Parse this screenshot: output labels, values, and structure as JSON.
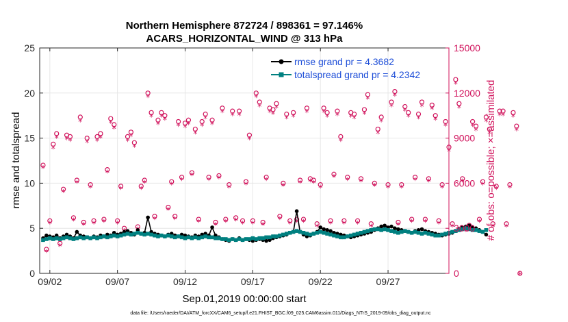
{
  "chart_data": {
    "type": "line",
    "title_line1": "Northern Hemisphere 872724 / 898361 = 97.146%",
    "title_line2": "ACARS_HORIZONTAL_WIND @ 313 hPa",
    "xlabel": "Sep.01,2019 00:00:00 start",
    "ylabel_left": "rmse and totalspread",
    "ylabel_right": "# of obs: o=possible; ×=assimilated",
    "footnote": "data file: /Users/raeder/DAI/ATM_forcXX/CAM6_setup/f.e21.FHIST_BGC.f09_025.CAM6assim.011/Diags_NTrS_2019-09/obs_diag_output.nc",
    "xlim": [
      0.25,
      30.5
    ],
    "ylim_left": [
      0,
      25
    ],
    "ylim_right": [
      0,
      15000
    ],
    "x_ticks": [
      1,
      6,
      11,
      16,
      21,
      26
    ],
    "x_tick_labels": [
      "09/02",
      "09/07",
      "09/12",
      "09/17",
      "09/22",
      "09/27"
    ],
    "y_ticks_left": [
      0,
      5,
      10,
      15,
      20,
      25
    ],
    "y_tick_labels_left": [
      "0",
      "5",
      "10",
      "15",
      "20",
      "25"
    ],
    "y_ticks_right": [
      0,
      3000,
      6000,
      9000,
      12000,
      15000
    ],
    "y_tick_labels_right": [
      "0",
      "3000",
      "6000",
      "9000",
      "12000",
      "15000"
    ],
    "colors": {
      "rmse": "#000000",
      "totalspread": "#008080",
      "obs": "#d0105a",
      "legend_text": "#1f4fd8",
      "grid": "#e6e6e6"
    },
    "series": [
      {
        "name": "rmse",
        "legend_label": "rmse grand pr = 4.3682",
        "values": [
          3.9,
          4.2,
          4.1,
          4.0,
          4.2,
          3.9,
          4.1,
          4.3,
          4.1,
          3.9,
          4.6,
          4.2,
          4.1,
          4.0,
          3.9,
          4.1,
          4.0,
          4.2,
          4.1,
          4.3,
          4.2,
          4.5,
          4.3,
          4.4,
          4.6,
          4.7,
          4.5,
          4.3,
          4.8,
          4.4,
          4.5,
          6.2,
          4.6,
          4.4,
          4.3,
          4.2,
          4.1,
          4.3,
          4.4,
          4.2,
          4.1,
          4.3,
          4.2,
          4.1,
          4.0,
          4.2,
          4.1,
          4.3,
          4.4,
          4.2,
          5.1,
          4.2,
          4.0,
          3.8,
          3.7,
          3.6,
          3.8,
          3.7,
          3.9,
          3.7,
          3.8,
          3.7,
          3.6,
          3.7,
          3.8,
          3.7,
          3.6,
          3.7,
          3.9,
          4.0,
          4.1,
          4.2,
          4.3,
          4.5,
          4.6,
          6.9,
          4.6,
          4.3,
          4.1,
          4.2,
          4.4,
          4.6,
          5.1,
          4.9,
          4.8,
          4.7,
          4.5,
          4.4,
          4.3,
          4.2,
          4.1,
          4.0,
          4.1,
          4.2,
          4.3,
          4.4,
          4.5,
          4.6,
          4.8,
          5.0,
          5.2,
          5.3,
          5.1,
          5.2,
          5.0,
          4.9,
          4.8,
          4.7,
          4.6,
          4.5,
          4.7,
          4.8,
          4.9,
          4.7,
          4.6,
          4.5,
          4.4,
          4.3,
          4.2,
          4.3,
          4.4,
          4.5,
          4.7,
          4.9,
          5.1,
          5.2,
          5.3,
          5.1,
          5.0,
          4.8,
          4.6,
          4.3
        ]
      },
      {
        "name": "totalspread",
        "legend_label": "totalspread grand pr = 4.2342",
        "values": [
          3.7,
          3.8,
          3.9,
          3.8,
          3.9,
          3.8,
          3.9,
          4.0,
          3.9,
          3.8,
          3.9,
          4.0,
          3.9,
          4.0,
          3.9,
          4.0,
          3.9,
          4.0,
          4.1,
          4.0,
          4.1,
          4.2,
          4.1,
          4.2,
          4.3,
          4.4,
          4.3,
          4.4,
          4.5,
          4.4,
          4.3,
          4.4,
          4.3,
          4.2,
          4.1,
          4.2,
          4.1,
          4.2,
          4.1,
          4.0,
          4.1,
          4.0,
          3.9,
          4.0,
          3.9,
          4.0,
          3.9,
          4.0,
          4.1,
          4.0,
          4.0,
          3.9,
          3.9,
          3.8,
          3.8,
          3.7,
          3.8,
          3.7,
          3.8,
          3.7,
          3.8,
          3.8,
          3.9,
          3.8,
          3.9,
          3.9,
          4.0,
          4.0,
          4.1,
          4.1,
          4.2,
          4.3,
          4.4,
          4.5,
          4.6,
          4.7,
          4.6,
          4.5,
          4.4,
          4.3,
          4.4,
          4.5,
          4.6,
          4.5,
          4.4,
          4.3,
          4.2,
          4.1,
          4.0,
          4.0,
          4.1,
          4.2,
          4.3,
          4.4,
          4.5,
          4.6,
          4.7,
          4.8,
          4.9,
          4.9,
          4.8,
          4.9,
          4.8,
          4.7,
          4.6,
          4.5,
          4.6,
          4.7,
          4.6,
          4.5,
          4.6,
          4.5,
          4.4,
          4.5,
          4.4,
          4.3,
          4.2,
          4.2,
          4.3,
          4.4,
          4.5,
          4.6,
          4.7,
          4.8,
          4.9,
          5.0,
          4.9,
          4.8,
          4.8,
          4.7,
          4.6,
          4.8
        ]
      },
      {
        "name": "obs_possible",
        "values": [
          7200,
          1600,
          3500,
          8600,
          9300,
          2000,
          5600,
          9200,
          9100,
          3700,
          6200,
          10400,
          3400,
          9000,
          5900,
          3500,
          9100,
          9300,
          3600,
          6900,
          10300,
          9900,
          3500,
          5800,
          3000,
          9100,
          9400,
          8700,
          3100,
          5800,
          6200,
          12000,
          10700,
          3800,
          10200,
          10700,
          10500,
          4400,
          6100,
          3800,
          10100,
          6400,
          10000,
          10200,
          6700,
          9600,
          3600,
          10100,
          10600,
          6400,
          10200,
          3400,
          6500,
          11000,
          3600,
          5900,
          10800,
          3700,
          10800,
          3500,
          6100,
          9200,
          3500,
          12000,
          11400,
          3400,
          6400,
          11000,
          10900,
          11300,
          3800,
          6000,
          10600,
          3500,
          10700,
          3600,
          6200,
          3600,
          11000,
          6300,
          6200,
          3300,
          5900,
          11000,
          10700,
          3500,
          6600,
          10800,
          9100,
          3500,
          6400,
          10700,
          10600,
          3500,
          6300,
          10900,
          11900,
          3300,
          6000,
          9600,
          10400,
          3100,
          5900,
          11400,
          12100,
          3400,
          5900,
          11100,
          10700,
          3600,
          6400,
          10600,
          11400,
          3600,
          6300,
          11200,
          10500,
          3500,
          5900,
          10100,
          8400,
          3300,
          12900,
          11300,
          6300,
          3000,
          3200,
          10100,
          9800,
          3600,
          6100,
          10400,
          9600,
          3300,
          5800,
          10800,
          10800,
          3300,
          5900,
          10700,
          9800,
          0
        ]
      },
      {
        "name": "obs_assimilated",
        "values": [
          7100,
          1500,
          3400,
          8400,
          9100,
          1900,
          5500,
          9000,
          8900,
          3600,
          6100,
          10200,
          3300,
          8800,
          5800,
          3400,
          8900,
          9100,
          3500,
          6800,
          10100,
          9700,
          3400,
          5700,
          2900,
          8900,
          9200,
          8500,
          3000,
          5700,
          6100,
          11800,
          10500,
          3700,
          10000,
          10500,
          10300,
          4300,
          6000,
          3700,
          9900,
          6300,
          9800,
          10000,
          6600,
          9400,
          3500,
          9900,
          10400,
          6300,
          10000,
          3300,
          6400,
          10800,
          3500,
          5800,
          10600,
          3600,
          10600,
          3400,
          6000,
          9000,
          3400,
          11800,
          11200,
          3300,
          6300,
          10800,
          10700,
          11100,
          3700,
          5900,
          10400,
          3400,
          10500,
          3500,
          6100,
          3500,
          10800,
          6200,
          6100,
          3200,
          5800,
          10800,
          10500,
          3400,
          6500,
          10600,
          8900,
          3400,
          6300,
          10500,
          10400,
          3400,
          6200,
          10700,
          11700,
          3200,
          5900,
          9400,
          10200,
          3000,
          5800,
          11200,
          11900,
          3300,
          5800,
          10900,
          10500,
          3500,
          6300,
          10400,
          11200,
          3500,
          6200,
          11000,
          10300,
          3400,
          5800,
          9900,
          8200,
          3200,
          12700,
          11100,
          6200,
          2900,
          3100,
          9900,
          9600,
          3500,
          6000,
          10200,
          9400,
          3200,
          5700,
          10600,
          10600,
          3200,
          5800,
          10500,
          9600,
          0
        ]
      }
    ]
  }
}
